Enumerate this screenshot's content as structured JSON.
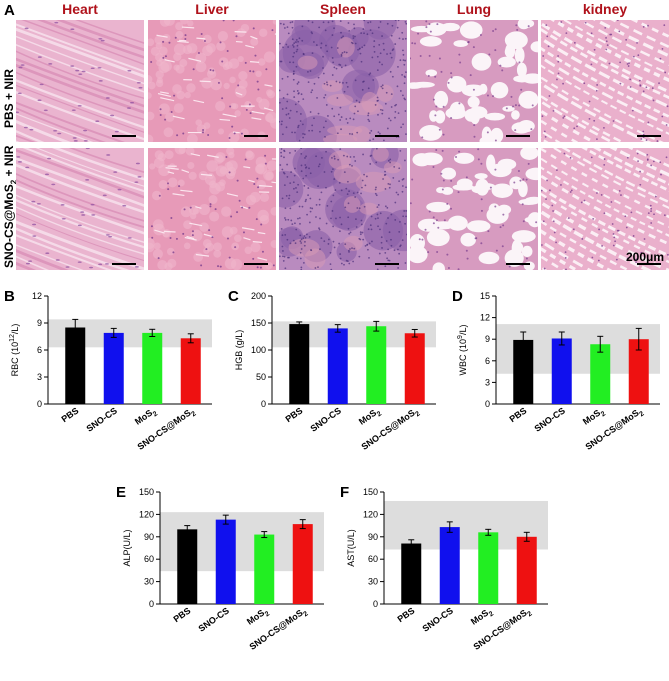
{
  "panel_a": {
    "letter": "A",
    "organs": [
      "Heart",
      "Liver",
      "Spleen",
      "Lung",
      "kidney"
    ],
    "rows": [
      {
        "label": "PBS + NIR"
      },
      {
        "label_main": "SNO-CS@MoS",
        "label_sub": "2",
        "label_tail": " + NIR"
      }
    ],
    "scale_label": "200μm",
    "colors": {
      "title": "#b0121b",
      "tissue_pink": "#e8a7c4",
      "nuclei_purple": "#7a4aa0"
    }
  },
  "chart_data": [
    {
      "letter": "B",
      "type": "bar",
      "ylabel_main": "RBC (10",
      "ylabel_sup": "12",
      "ylabel_tail": "/L)",
      "ylim": [
        0,
        12
      ],
      "yticks": [
        0,
        3,
        6,
        9,
        12
      ],
      "reference_range": [
        6.3,
        9.4
      ],
      "categories": [
        "PBS",
        "SNO-CS",
        "MoS2",
        "SNO-CS@MoS2"
      ],
      "values": [
        8.5,
        7.9,
        7.9,
        7.3
      ],
      "errors": [
        0.9,
        0.5,
        0.4,
        0.5
      ]
    },
    {
      "letter": "C",
      "type": "bar",
      "ylabel_main": "HGB (g/L)",
      "ylabel_sup": "",
      "ylabel_tail": "",
      "ylim": [
        0,
        200
      ],
      "yticks": [
        0,
        50,
        100,
        150,
        200
      ],
      "reference_range": [
        105,
        153
      ],
      "categories": [
        "PBS",
        "SNO-CS",
        "MoS2",
        "SNO-CS@MoS2"
      ],
      "values": [
        148,
        140,
        144,
        131
      ],
      "errors": [
        4,
        7,
        9,
        7
      ]
    },
    {
      "letter": "D",
      "type": "bar",
      "ylabel_main": "WBC (10",
      "ylabel_sup": "9",
      "ylabel_tail": "/L)",
      "ylim": [
        0,
        15
      ],
      "yticks": [
        0,
        3,
        6,
        9,
        12,
        15
      ],
      "reference_range": [
        4.2,
        11.1
      ],
      "categories": [
        "PBS",
        "SNO-CS",
        "MoS2",
        "SNO-CS@MoS2"
      ],
      "values": [
        8.9,
        9.1,
        8.3,
        9.0
      ],
      "errors": [
        1.1,
        0.9,
        1.1,
        1.5
      ]
    },
    {
      "letter": "E",
      "type": "bar",
      "ylabel_main": "ALP(U/L)",
      "ylabel_sup": "",
      "ylabel_tail": "",
      "ylim": [
        0,
        150
      ],
      "yticks": [
        0,
        30,
        60,
        90,
        120,
        150
      ],
      "reference_range": [
        44,
        123
      ],
      "categories": [
        "PBS",
        "SNO-CS",
        "MoS2",
        "SNO-CS@MoS2"
      ],
      "values": [
        100,
        113,
        93,
        107
      ],
      "errors": [
        5,
        6,
        4,
        6
      ]
    },
    {
      "letter": "F",
      "type": "bar",
      "ylabel_main": "AST(U/L)",
      "ylabel_sup": "",
      "ylabel_tail": "",
      "ylim": [
        0,
        150
      ],
      "yticks": [
        0,
        30,
        60,
        90,
        120,
        150
      ],
      "reference_range": [
        73,
        138
      ],
      "categories": [
        "PBS",
        "SNO-CS",
        "MoS2",
        "SNO-CS@MoS2"
      ],
      "values": [
        81,
        103,
        96,
        90
      ],
      "errors": [
        5,
        7,
        4,
        6
      ]
    }
  ],
  "bar_colors": [
    "#000000",
    "#1010ee",
    "#22ee22",
    "#ee1111"
  ],
  "reference_band_color": "#dddddd"
}
